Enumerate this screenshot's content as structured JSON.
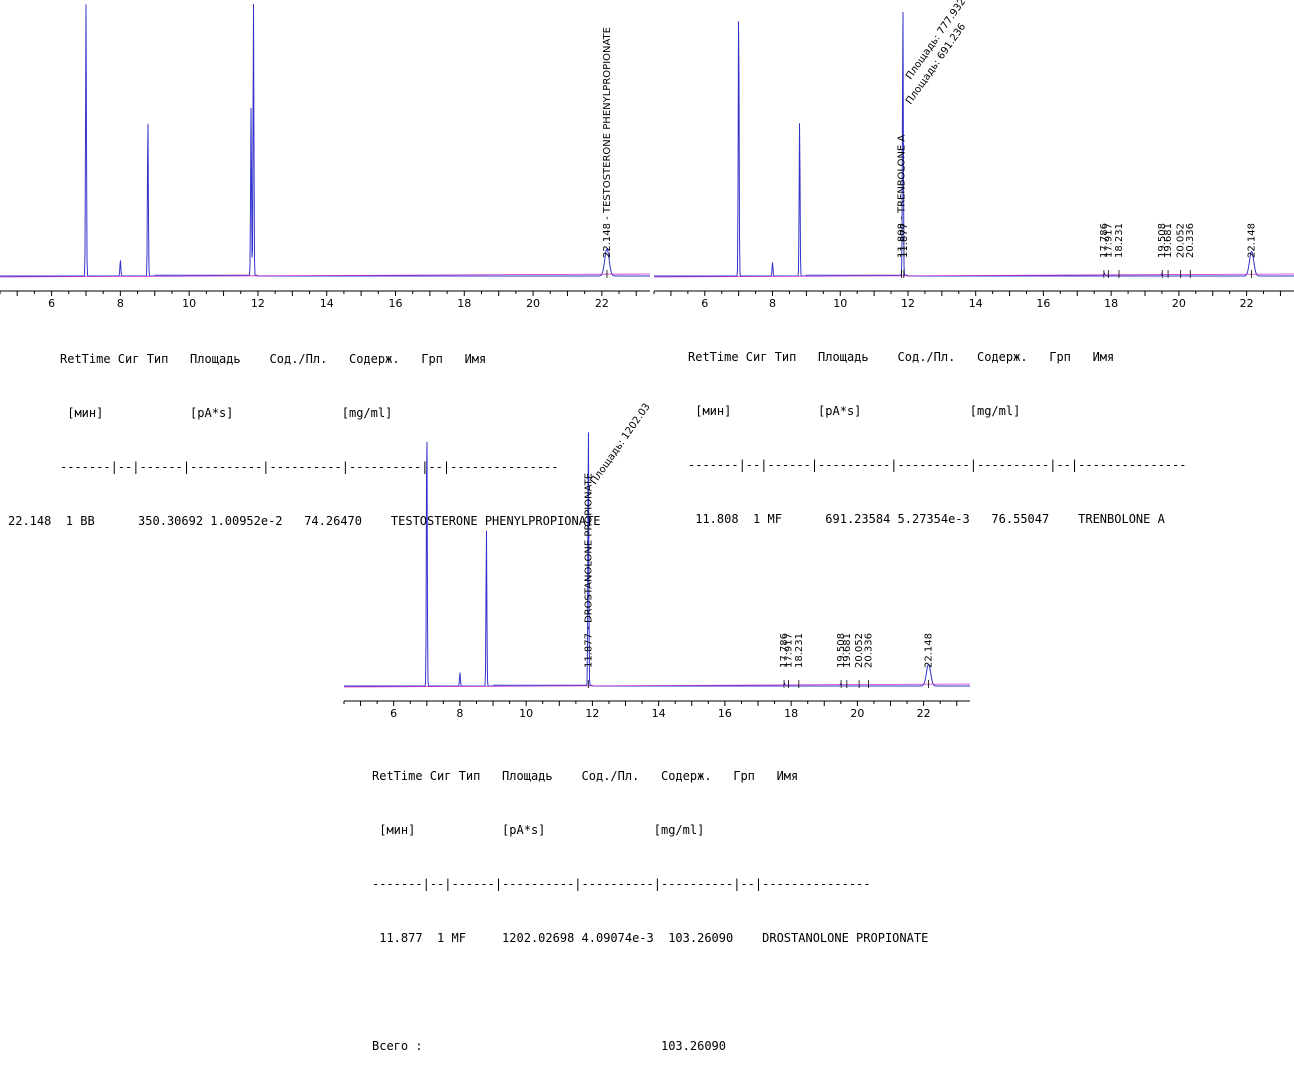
{
  "chart_data": [
    {
      "type": "line",
      "title": "",
      "xlabel": "",
      "ylabel": "",
      "xlim": [
        4.5,
        23.4
      ],
      "xticks": [
        6,
        8,
        10,
        12,
        14,
        16,
        18,
        20,
        22
      ],
      "series": [
        {
          "color": "#3333cc",
          "peaks": [
            [
              7.0,
              1.0
            ],
            [
              8.0,
              0.06
            ],
            [
              8.8,
              0.58
            ],
            [
              11.8,
              0.62
            ],
            [
              11.87,
              1.0
            ],
            [
              22.148,
              0.1
            ]
          ]
        }
      ],
      "annotations": [
        {
          "x": 22.148,
          "text": "22.148 - TESTOSTERONE PHENYLPROPIONATE"
        }
      ],
      "report": {
        "header1": "RetTime Сиг Тип   Площадь    Сод./Пл.   Содерж.   Грп   Имя",
        "header2": " [мин]            [pA*s]               [mg/ml]",
        "sep": "-------|--|------|----------|----------|----------|--|---------------",
        "row": "22.148  1 BB      350.30692 1.00952e-2   74.26470    TESTOSTERONE PHENYLPROPIONATE"
      }
    },
    {
      "type": "line",
      "title": "",
      "xlabel": "",
      "ylabel": "",
      "xlim": [
        4.5,
        23.4
      ],
      "xticks": [
        6,
        8,
        10,
        12,
        14,
        16,
        18,
        20,
        22
      ],
      "series": [
        {
          "color": "#3333cc",
          "peaks": [
            [
              7.0,
              1.0
            ],
            [
              8.0,
              0.05
            ],
            [
              8.8,
              0.58
            ],
            [
              11.85,
              1.0
            ],
            [
              17.8,
              0.01
            ],
            [
              19.5,
              0.01
            ],
            [
              22.148,
              0.09
            ]
          ]
        }
      ],
      "annotations": [
        {
          "x": 17.786,
          "text": "17.786"
        },
        {
          "x": 17.917,
          "text": "17.917"
        },
        {
          "x": 18.231,
          "text": "18.231"
        },
        {
          "x": 19.508,
          "text": "19.508"
        },
        {
          "x": 19.681,
          "text": "19.681"
        },
        {
          "x": 20.052,
          "text": "20.052"
        },
        {
          "x": 20.336,
          "text": "20.336"
        },
        {
          "x": 22.148,
          "text": "22.148"
        },
        {
          "x": 11.808,
          "text": "11.808 - TRENBOLONE A"
        },
        {
          "x": 11.877,
          "text": "11.877"
        }
      ],
      "area_labels": [
        "Площадь: 777.932",
        "Площадь: 691.236"
      ],
      "report": {
        "header1": "RetTime Сиг Тип   Площадь    Сод./Пл.   Содерж.   Грп   Имя",
        "header2": " [мин]            [pA*s]               [mg/ml]",
        "sep": "-------|--|------|----------|----------|----------|--|---------------",
        "row": " 11.808  1 MF      691.23584 5.27354e-3   76.55047    TRENBOLONE A"
      }
    },
    {
      "type": "line",
      "title": "",
      "xlabel": "",
      "ylabel": "",
      "xlim": [
        4.5,
        23.4
      ],
      "xticks": [
        6,
        8,
        10,
        12,
        14,
        16,
        18,
        20,
        22
      ],
      "series": [
        {
          "color": "#3333cc",
          "peaks": [
            [
              7.0,
              1.0
            ],
            [
              8.0,
              0.05
            ],
            [
              8.8,
              0.58
            ],
            [
              11.877,
              1.0
            ],
            [
              17.8,
              0.01
            ],
            [
              19.5,
              0.01
            ],
            [
              22.148,
              0.08
            ]
          ]
        }
      ],
      "annotations": [
        {
          "x": 17.786,
          "text": "17.786"
        },
        {
          "x": 17.917,
          "text": "17.917"
        },
        {
          "x": 18.231,
          "text": "18.231"
        },
        {
          "x": 19.508,
          "text": "19.508"
        },
        {
          "x": 19.681,
          "text": "19.681"
        },
        {
          "x": 20.052,
          "text": "20.052"
        },
        {
          "x": 20.336,
          "text": "20.336"
        },
        {
          "x": 22.148,
          "text": "22.148"
        },
        {
          "x": 11.877,
          "text": "11.877 - DROSTANOLONE PROPIONATE"
        }
      ],
      "area_labels": [
        "Площадь: 1202.03"
      ],
      "report": {
        "header1": "RetTime Сиг Тип   Площадь    Сод./Пл.   Содерж.   Грп   Имя",
        "header2": " [мин]            [pA*s]               [mg/ml]",
        "sep": "-------|--|------|----------|----------|----------|--|---------------",
        "row": " 11.877  1 MF     1202.02698 4.09074e-3  103.26090    DROSTANOLONE PROPIONATE",
        "total": "Всего :                                 103.26090"
      }
    }
  ]
}
